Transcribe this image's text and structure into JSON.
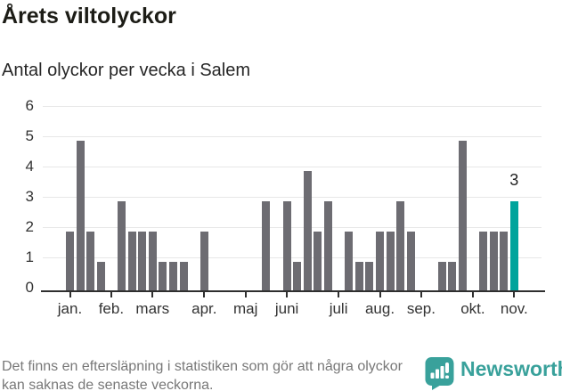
{
  "header": {
    "title": "Årets viltolyckor",
    "subtitle": "Antal olyckor per vecka i Salem"
  },
  "chart_data": {
    "type": "bar",
    "title": "Årets viltolyckor",
    "subtitle": "Antal olyckor per vecka i Salem",
    "xlabel": "",
    "ylabel": "",
    "ylim": [
      0,
      6
    ],
    "yticks": [
      0,
      1,
      2,
      3,
      4,
      5,
      6
    ],
    "grid": true,
    "unit": "olyckor per vecka",
    "values": [
      2,
      5,
      2,
      1,
      0,
      3,
      2,
      2,
      2,
      1,
      1,
      1,
      0,
      2,
      0,
      0,
      0,
      0,
      0,
      3,
      0,
      3,
      1,
      4,
      2,
      3,
      0,
      2,
      1,
      1,
      2,
      2,
      3,
      2,
      0,
      0,
      1,
      1,
      5,
      0,
      2,
      2,
      2,
      3
    ],
    "month_ticks": [
      {
        "label": "jan.",
        "week": 1
      },
      {
        "label": "feb.",
        "week": 5
      },
      {
        "label": "mars",
        "week": 9
      },
      {
        "label": "apr.",
        "week": 14
      },
      {
        "label": "maj",
        "week": 18
      },
      {
        "label": "juni",
        "week": 22
      },
      {
        "label": "juli",
        "week": 27
      },
      {
        "label": "aug.",
        "week": 31
      },
      {
        "label": "sep.",
        "week": 35
      },
      {
        "label": "okt.",
        "week": 40
      },
      {
        "label": "nov.",
        "week": 44
      }
    ],
    "highlight_index": 43,
    "highlight_label": "3",
    "colors": {
      "bar": "#6d6c72",
      "highlight": "#00a49c",
      "grid": "#e7e7e7",
      "axis": "#2f2f2f",
      "axis_text": "#333333"
    }
  },
  "footer": {
    "note": "Det finns en eftersläpning i statistiken som gör att några olyckor kan saknas de senaste veckorna.",
    "brand": "Newsworthy"
  },
  "icons": {
    "brand_icon": "newsworthy-speech-bubble-chart-icon"
  }
}
